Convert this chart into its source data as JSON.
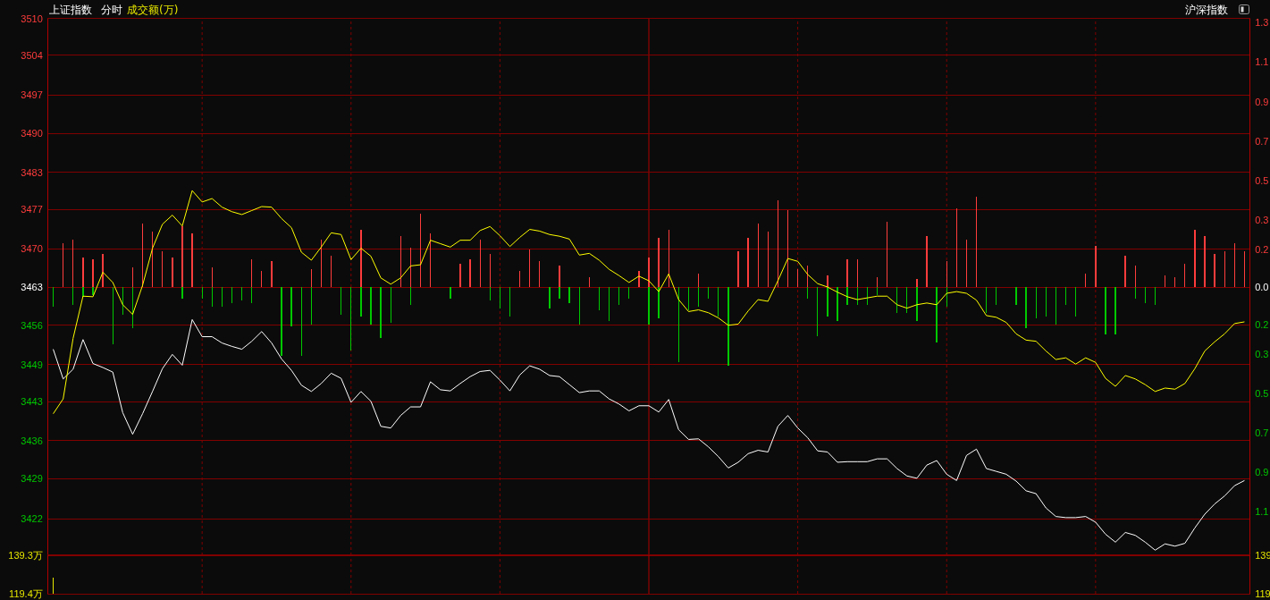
{
  "chart_data": [
    {
      "type": "line",
      "title": "上证指数",
      "subtitle": "分时",
      "annotations": [
        "成交额(万)",
        "沪深指数"
      ],
      "categories": [
        null,
        null,
        null,
        null,
        null,
        null,
        null,
        null,
        null,
        null,
        null,
        null,
        null,
        null,
        null,
        null,
        null,
        null,
        null,
        null,
        null,
        null,
        null,
        null,
        null,
        null,
        null,
        null,
        null,
        null,
        null,
        null,
        null,
        null,
        null,
        null,
        null,
        null,
        null,
        null,
        null,
        null,
        null,
        null,
        null,
        null,
        null,
        null,
        null,
        null,
        null,
        null,
        null,
        null,
        null,
        null,
        null,
        null,
        null,
        null,
        null,
        null,
        null,
        null,
        null,
        null,
        null,
        null,
        null,
        null,
        null,
        null,
        null,
        null,
        null,
        null,
        null,
        null,
        null,
        null,
        null,
        null,
        null,
        null,
        null,
        null,
        null,
        null,
        null,
        null,
        null,
        null,
        null,
        null,
        null,
        null,
        null,
        null,
        null,
        null,
        null,
        null,
        null,
        null,
        null,
        null,
        null,
        null,
        null,
        null,
        null,
        null,
        null,
        null,
        null,
        null,
        null,
        null,
        null,
        null,
        null
      ],
      "series": [
        {
          "color": "#ffffff",
          "values": [
            3452.1,
            3446.9,
            3448.6,
            3453.8,
            3449.6,
            3448.9,
            3448.1,
            3441.0,
            3437.2,
            3440.8,
            3444.7,
            3448.7,
            3451.2,
            3449.3,
            3457.3,
            3454.3,
            3454.3,
            3453.2,
            3452.6,
            3452.1,
            3453.5,
            3455.2,
            3453.2,
            3450.4,
            3448.4,
            3445.8,
            3444.7,
            3446.1,
            3447.9,
            3447.0,
            3442.8,
            3444.7,
            3443.0,
            3438.6,
            3438.3,
            3440.5,
            3442.0,
            3442.0,
            3446.4,
            3445.0,
            3444.8,
            3446.1,
            3447.3,
            3448.2,
            3448.4,
            3446.7,
            3444.8,
            3447.6,
            3449.2,
            3448.6,
            3447.5,
            3447.3,
            3445.9,
            3444.5,
            3444.8,
            3444.8,
            3443.4,
            3442.5,
            3441.3,
            3442.2,
            3442.2,
            3441.1,
            3443.3,
            3438.0,
            3436.3,
            3436.4,
            3435.0,
            3433.3,
            3431.3,
            3432.3,
            3433.8,
            3434.4,
            3434.1,
            3438.6,
            3440.5,
            3438.3,
            3436.6,
            3434.3,
            3434.1,
            3432.3,
            3432.4,
            3432.4,
            3432.4,
            3432.9,
            3432.9,
            3431.2,
            3429.9,
            3429.5,
            3431.8,
            3432.6,
            3430.2,
            3429.1,
            3433.5,
            3434.6,
            3431.2,
            3430.7,
            3430.2,
            3429.0,
            3427.3,
            3426.8,
            3424.3,
            3422.8,
            3422.6,
            3422.6,
            3422.8,
            3421.8,
            3419.7,
            3418.3,
            3420.0,
            3419.5,
            3418.3,
            3416.9,
            3418.0,
            3417.6,
            3418.1,
            3420.8,
            3423.2,
            3425.0,
            3426.4,
            3428.2,
            3429.1
          ]
        },
        {
          "color": "#ffff00",
          "values": [
            3440.8,
            3443.4,
            3454.0,
            3461.4,
            3461.3,
            3465.6,
            3463.8,
            3459.9,
            3458.2,
            3463.3,
            3469.8,
            3474.0,
            3475.6,
            3473.7,
            3479.9,
            3477.9,
            3478.5,
            3477.0,
            3476.2,
            3475.7,
            3476.4,
            3477.1,
            3477.0,
            3475.0,
            3473.4,
            3469.1,
            3467.7,
            3470.0,
            3472.5,
            3472.2,
            3467.8,
            3469.8,
            3468.4,
            3464.6,
            3463.5,
            3464.6,
            3466.7,
            3466.9,
            3471.2,
            3470.6,
            3470.0,
            3471.2,
            3471.2,
            3472.9,
            3473.6,
            3472.0,
            3470.1,
            3471.7,
            3473.1,
            3472.8,
            3472.2,
            3471.9,
            3471.4,
            3468.6,
            3468.9,
            3467.7,
            3466.1,
            3465.0,
            3463.8,
            3464.9,
            3464.1,
            3462.2,
            3465.3,
            3460.8,
            3458.7,
            3459.0,
            3458.5,
            3457.6,
            3456.3,
            3456.5,
            3458.8,
            3460.8,
            3460.5,
            3464.1,
            3468.0,
            3467.5,
            3465.2,
            3463.6,
            3463.0,
            3462.1,
            3461.3,
            3460.8,
            3461.1,
            3461.4,
            3461.4,
            3459.9,
            3459.3,
            3459.9,
            3460.2,
            3459.9,
            3461.9,
            3462.2,
            3461.9,
            3460.7,
            3458.0,
            3457.7,
            3456.8,
            3454.8,
            3453.7,
            3453.5,
            3451.8,
            3450.3,
            3450.6,
            3449.5,
            3450.6,
            3449.8,
            3447.0,
            3445.6,
            3447.5,
            3446.9,
            3445.9,
            3444.7,
            3445.3,
            3445.1,
            3446.1,
            3448.7,
            3451.8,
            3453.4,
            3454.8,
            3456.6,
            3456.9
          ]
        },
        {
          "type": "bar",
          "axis": "y2",
          "color": "#ff3c3c",
          "values": [
            null,
            0.22,
            0.24,
            0.15,
            0.14,
            0.17,
            null,
            null,
            0.1,
            0.32,
            0.28,
            0.18,
            0.15,
            0.31,
            0.27,
            null,
            0.1,
            null,
            null,
            null,
            0.14,
            0.08,
            0.13,
            null,
            null,
            null,
            0.09,
            0.24,
            0.16,
            null,
            null,
            0.29,
            null,
            null,
            null,
            0.26,
            0.2,
            0.37,
            0.27,
            null,
            null,
            0.12,
            0.14,
            0.24,
            0.17,
            null,
            null,
            0.08,
            0.19,
            0.13,
            null,
            0.11,
            null,
            null,
            0.05,
            null,
            null,
            null,
            null,
            0.08,
            0.15,
            0.25,
            0.29,
            null,
            null,
            0.07,
            null,
            null,
            null,
            0.18,
            0.25,
            0.32,
            0.28,
            0.44,
            0.39,
            0.09,
            0.11,
            null,
            0.06,
            null,
            0.14,
            0.14,
            null,
            0.05,
            0.33,
            null,
            null,
            0.04,
            0.26,
            null,
            0.13,
            0.4,
            0.24,
            0.46,
            null,
            null,
            null,
            null,
            null,
            null,
            null,
            null,
            null,
            null,
            0.07,
            0.21,
            null,
            null,
            0.16,
            0.11,
            null,
            null,
            0.06,
            0.05,
            0.12,
            0.29,
            0.26,
            0.17,
            0.18,
            0.22,
            0.18
          ]
        },
        {
          "type": "bar",
          "axis": "y2",
          "color": "#00c800",
          "values": [
            -0.1,
            null,
            -0.09,
            -0.05,
            -0.04,
            null,
            -0.29,
            -0.14,
            -0.21,
            null,
            null,
            null,
            null,
            -0.06,
            null,
            -0.06,
            -0.1,
            -0.1,
            -0.08,
            -0.07,
            -0.08,
            null,
            null,
            -0.35,
            -0.2,
            -0.35,
            -0.19,
            null,
            null,
            -0.14,
            -0.32,
            -0.15,
            -0.19,
            -0.26,
            -0.18,
            null,
            -0.09,
            null,
            null,
            null,
            -0.06,
            null,
            null,
            null,
            -0.07,
            -0.11,
            -0.15,
            null,
            null,
            null,
            -0.11,
            -0.06,
            -0.08,
            -0.19,
            null,
            -0.12,
            -0.17,
            -0.09,
            -0.06,
            null,
            -0.19,
            -0.16,
            null,
            -0.38,
            -0.12,
            -0.1,
            -0.06,
            -0.15,
            -0.4,
            null,
            null,
            null,
            null,
            null,
            null,
            null,
            -0.06,
            -0.25,
            -0.15,
            -0.17,
            -0.09,
            -0.09,
            -0.09,
            -0.04,
            null,
            -0.13,
            -0.13,
            -0.17,
            null,
            -0.28,
            -0.1,
            null,
            null,
            null,
            -0.13,
            -0.09,
            null,
            -0.09,
            -0.21,
            -0.16,
            -0.15,
            -0.19,
            -0.09,
            -0.15,
            null,
            null,
            -0.24,
            -0.24,
            null,
            -0.06,
            -0.08,
            -0.09,
            null,
            null,
            null,
            null,
            null,
            null,
            null,
            null,
            null
          ]
        }
      ],
      "ylim": [
        3416,
        3510
      ],
      "yticks": [
        3510,
        {
          "value": 3503.6,
          "label": "3504"
        },
        {
          "value": 3496.6,
          "label": "3497"
        },
        {
          "value": 3489.9,
          "label": "3490"
        },
        {
          "value": 3483.1,
          "label": "3483"
        },
        {
          "value": 3476.6,
          "label": "3477"
        },
        {
          "value": 3469.7,
          "label": "3470"
        },
        3463,
        {
          "value": 3456.3,
          "label": "3456"
        },
        {
          "value": 3449.4,
          "label": "3449"
        },
        {
          "value": 3442.9,
          "label": "3443"
        },
        {
          "value": 3436.1,
          "label": "3436"
        },
        {
          "value": 3429.4,
          "label": "3429"
        },
        {
          "value": 3422.4,
          "label": "3422"
        }
      ],
      "y2lim": [
        -1.36,
        1.36
      ],
      "y2ticks": [
        {
          "value": 1.34,
          "label": "1.3"
        },
        {
          "value": 1.14,
          "label": "1.1"
        },
        {
          "value": 0.94,
          "label": "0.9"
        },
        {
          "value": 0.74,
          "label": "0.7"
        },
        {
          "value": 0.54,
          "label": "0.5"
        },
        {
          "value": 0.34,
          "label": "0.3"
        },
        {
          "value": 0.19,
          "label": "0.2"
        },
        {
          "value": 0,
          "label": "0.0"
        },
        {
          "value": -0.19,
          "label": "0.2"
        },
        {
          "value": -0.34,
          "label": "0.3"
        },
        {
          "value": -0.54,
          "label": "0.5"
        },
        {
          "value": -0.74,
          "label": "0.7"
        },
        {
          "value": -0.94,
          "label": "0.9"
        },
        {
          "value": -1.14,
          "label": "1.1"
        }
      ],
      "grid": true,
      "tick_labels": "y"
    },
    {
      "type": "bar",
      "categories": [
        null,
        null,
        null,
        null,
        null,
        null,
        null,
        null,
        null,
        null,
        null,
        null,
        null,
        null,
        null,
        null,
        null,
        null,
        null,
        null,
        null,
        null,
        null,
        null,
        null,
        null,
        null,
        null,
        null,
        null,
        null,
        null,
        null,
        null,
        null,
        null,
        null,
        null,
        null,
        null,
        null,
        null,
        null,
        null,
        null,
        null,
        null,
        null,
        null,
        null,
        null,
        null,
        null,
        null,
        null,
        null,
        null,
        null,
        null,
        null,
        null,
        null,
        null,
        null,
        null,
        null,
        null,
        null,
        null,
        null,
        null,
        null,
        null,
        null,
        null,
        null,
        null,
        null,
        null,
        null,
        null,
        null,
        null,
        null,
        null,
        null,
        null,
        null,
        null,
        null,
        null,
        null,
        null,
        null,
        null,
        null,
        null,
        null,
        null,
        null,
        null,
        null,
        null,
        null,
        null,
        null,
        null,
        null,
        null,
        null,
        null,
        null,
        null,
        null,
        null,
        null,
        null,
        null,
        null,
        null,
        null
      ],
      "series": [
        {
          "color": "#e6e600",
          "values": [
            127.7,
            null,
            null,
            null,
            null,
            null,
            null,
            null,
            null,
            null,
            null,
            null,
            null,
            null,
            null,
            null,
            null,
            null,
            null,
            null,
            null,
            null,
            null,
            null,
            null,
            null,
            null,
            null,
            null,
            null,
            null,
            null,
            null,
            null,
            null,
            null,
            null,
            null,
            null,
            null,
            null,
            null,
            null,
            null,
            null,
            null,
            null,
            null,
            null,
            null,
            null,
            null,
            null,
            null,
            null,
            null,
            null,
            null,
            null,
            null,
            null,
            null,
            null,
            null,
            null,
            null,
            null,
            null,
            null,
            null,
            null,
            null,
            null,
            null,
            null,
            null,
            null,
            null,
            null,
            null,
            null,
            null,
            null,
            null,
            null,
            null,
            null,
            null,
            null,
            null,
            null,
            null,
            null,
            null,
            null,
            null,
            null,
            null,
            null,
            null,
            null,
            null,
            null,
            null,
            null,
            null,
            null,
            null,
            null,
            null,
            null,
            null,
            null,
            null,
            null,
            null,
            null,
            null,
            null,
            null,
            null
          ]
        }
      ],
      "ylim": [
        119.4,
        139.3
      ],
      "yticks": [
        {
          "value": 139.3,
          "label": "139.3万"
        },
        {
          "value": 119.4,
          "label": "119.4万"
        }
      ],
      "y2lim": [
        119.4,
        139.3
      ],
      "y2ticks": [
        {
          "value": 139.3,
          "label": "139"
        },
        {
          "value": 119.4,
          "label": "119"
        }
      ],
      "grid": "x",
      "tick_labels": "y"
    }
  ]
}
